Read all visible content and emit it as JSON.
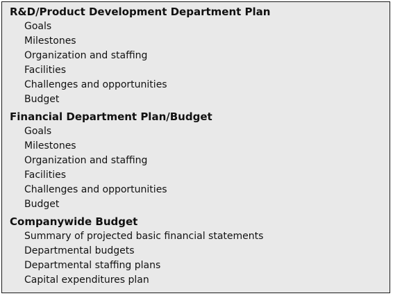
{
  "sections": [
    {
      "title": "R&D/Product Development Department Plan",
      "items": [
        "Goals",
        "Milestones",
        "Organization and staffing",
        "Facilities",
        "Challenges and opportunities",
        "Budget"
      ]
    },
    {
      "title": "Financial Department Plan/Budget",
      "items": [
        "Goals",
        "Milestones",
        "Organization and staffing",
        "Facilities",
        "Challenges and opportunities",
        "Budget"
      ]
    },
    {
      "title": "Companywide Budget",
      "items": [
        "Summary of projected basic financial statements",
        "Departmental budgets",
        "Departmental staffing plans",
        "Capital expenditures plan"
      ]
    }
  ],
  "colors": {
    "box_background": "#e9e9e9",
    "border": "#1a1a1a",
    "text": "#111111"
  }
}
